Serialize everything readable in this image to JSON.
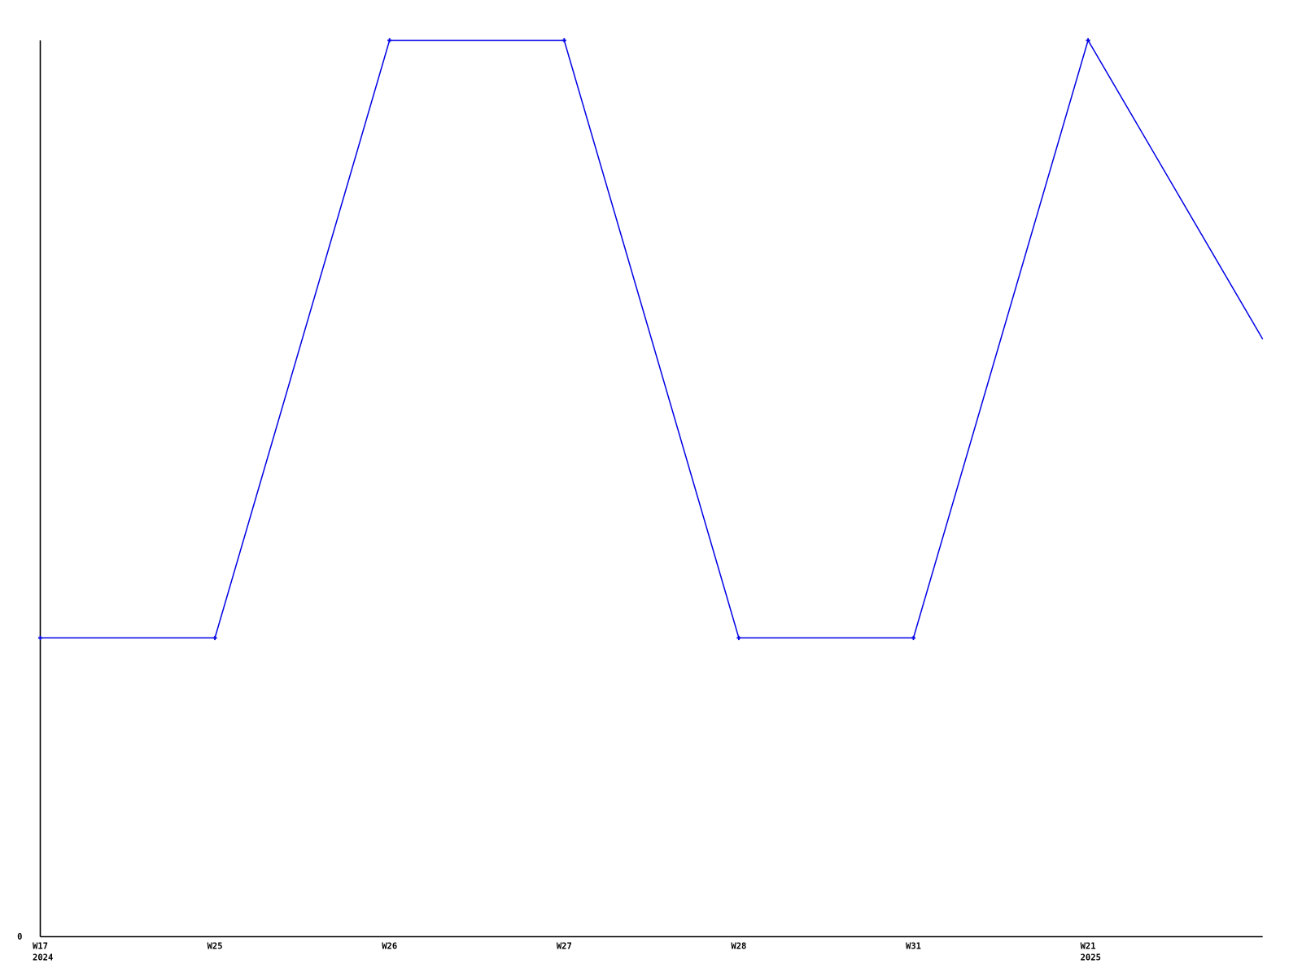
{
  "page": {
    "background_color": "#ffffff"
  },
  "chart_data": {
    "type": "line",
    "title": "",
    "xlabel": "",
    "ylabel": "",
    "ylim": [
      0,
      3
    ],
    "grid": false,
    "legend": false,
    "line_color": "#0000e6",
    "axis_color": "#000000",
    "text_color": "#000000",
    "marker_shape": "plus",
    "y_ticks": [
      {
        "value": 0,
        "label": "0"
      }
    ],
    "points": [
      {
        "label": "W17",
        "sublabel": "2024",
        "value": 1,
        "marker": true
      },
      {
        "label": "W25",
        "sublabel": "",
        "value": 1,
        "marker": true
      },
      {
        "label": "W26",
        "sublabel": "",
        "value": 3,
        "marker": true
      },
      {
        "label": "W27",
        "sublabel": "",
        "value": 3,
        "marker": true
      },
      {
        "label": "W28",
        "sublabel": "",
        "value": 1,
        "marker": true
      },
      {
        "label": "W31",
        "sublabel": "",
        "value": 1,
        "marker": true
      },
      {
        "label": "W21",
        "sublabel": "2025",
        "value": 3,
        "marker": true
      },
      {
        "label": "",
        "sublabel": "",
        "value": 2,
        "marker": false
      }
    ]
  }
}
